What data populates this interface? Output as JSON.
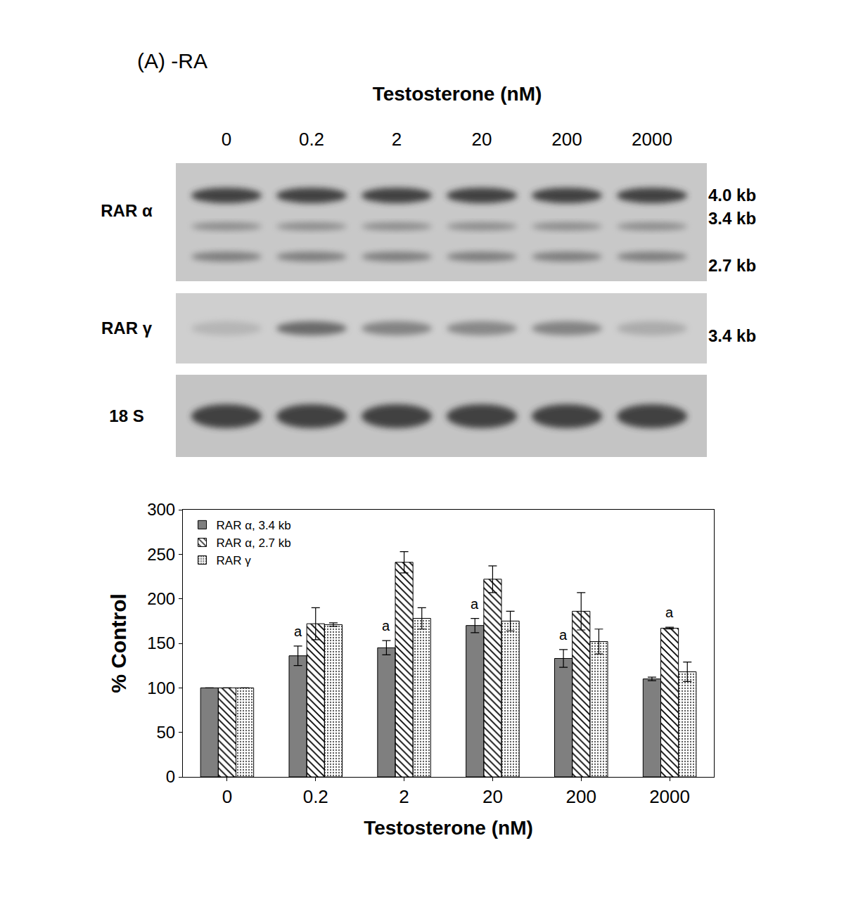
{
  "panel_title": "(A) -RA",
  "blot": {
    "header": "Testosterone (nM)",
    "lanes": [
      "0",
      "0.2",
      "2",
      "20",
      "200",
      "2000"
    ],
    "rows": [
      {
        "label": "RAR α",
        "sizes": [
          "4.0 kb",
          "3.4 kb",
          "2.7 kb"
        ]
      },
      {
        "label": "RAR γ",
        "sizes": [
          "3.4 kb"
        ]
      },
      {
        "label": "18 S",
        "sizes": []
      }
    ]
  },
  "chart_data": {
    "type": "bar",
    "x_label": "Testosterone (nM)",
    "y_label": "% Control",
    "categories": [
      "0",
      "0.2",
      "2",
      "20",
      "200",
      "2000"
    ],
    "series": [
      {
        "name": "RAR α, 3.4 kb",
        "color": "#7f7f7f",
        "marker": "solid",
        "values": [
          100,
          136,
          145,
          170,
          133,
          110
        ],
        "errors": [
          0,
          11,
          8,
          8,
          10,
          2
        ]
      },
      {
        "name": "RAR α, 2.7 kb",
        "color": "#8c8c8c",
        "marker": "hatched",
        "values": [
          100,
          172,
          241,
          222,
          186,
          167
        ],
        "errors": [
          0,
          18,
          12,
          15,
          21,
          1
        ]
      },
      {
        "name": "RAR γ",
        "color": "#d9d9d9",
        "marker": "dotted",
        "values": [
          100,
          171,
          178,
          175,
          152,
          118
        ],
        "errors": [
          0,
          2,
          12,
          11,
          14,
          11
        ]
      }
    ],
    "annotations": [
      {
        "text": "a",
        "category": "0.2",
        "series": "RAR α, 3.4 kb"
      },
      {
        "text": "a",
        "category": "2",
        "series": "RAR α, 3.4 kb"
      },
      {
        "text": "a",
        "category": "20",
        "series": "RAR α, 3.4 kb"
      },
      {
        "text": "a",
        "category": "200",
        "series": "RAR α, 3.4 kb"
      },
      {
        "text": "a",
        "category": "2000",
        "series": "RAR α, 2.7 kb"
      }
    ],
    "ylim": [
      0,
      300
    ],
    "yticks": [
      0,
      50,
      100,
      150,
      200,
      250,
      300
    ],
    "grid": false,
    "legend": "top-left"
  }
}
